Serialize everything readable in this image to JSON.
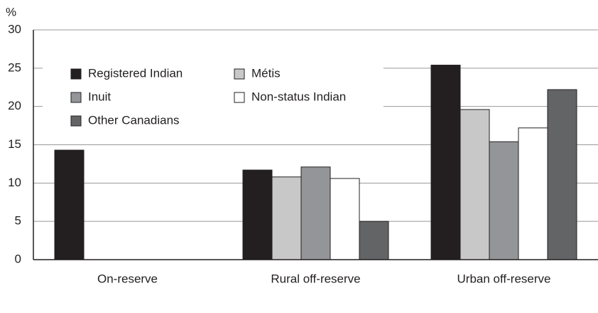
{
  "chart_data": {
    "type": "bar",
    "y_label": "%",
    "categories": [
      "On-reserve",
      "Rural off-reserve",
      "Urban off-reserve"
    ],
    "series": [
      {
        "name": "Registered Indian",
        "color": "#231f20",
        "values": [
          14.3,
          11.7,
          25.4
        ]
      },
      {
        "name": "Métis",
        "color": "#c8c8c8",
        "values": [
          null,
          10.8,
          19.6
        ]
      },
      {
        "name": "Inuit",
        "color": "#939598",
        "values": [
          null,
          12.1,
          15.4
        ]
      },
      {
        "name": "Non-status Indian",
        "color": "#ffffff",
        "values": [
          null,
          10.6,
          17.2
        ]
      },
      {
        "name": "Other Canadians",
        "color": "#636466",
        "values": [
          null,
          5.0,
          22.2
        ]
      }
    ],
    "ylim": [
      0,
      30
    ],
    "yticks": [
      0,
      5,
      10,
      15,
      20,
      25,
      30
    ],
    "grid": true,
    "legend": "upper left"
  }
}
